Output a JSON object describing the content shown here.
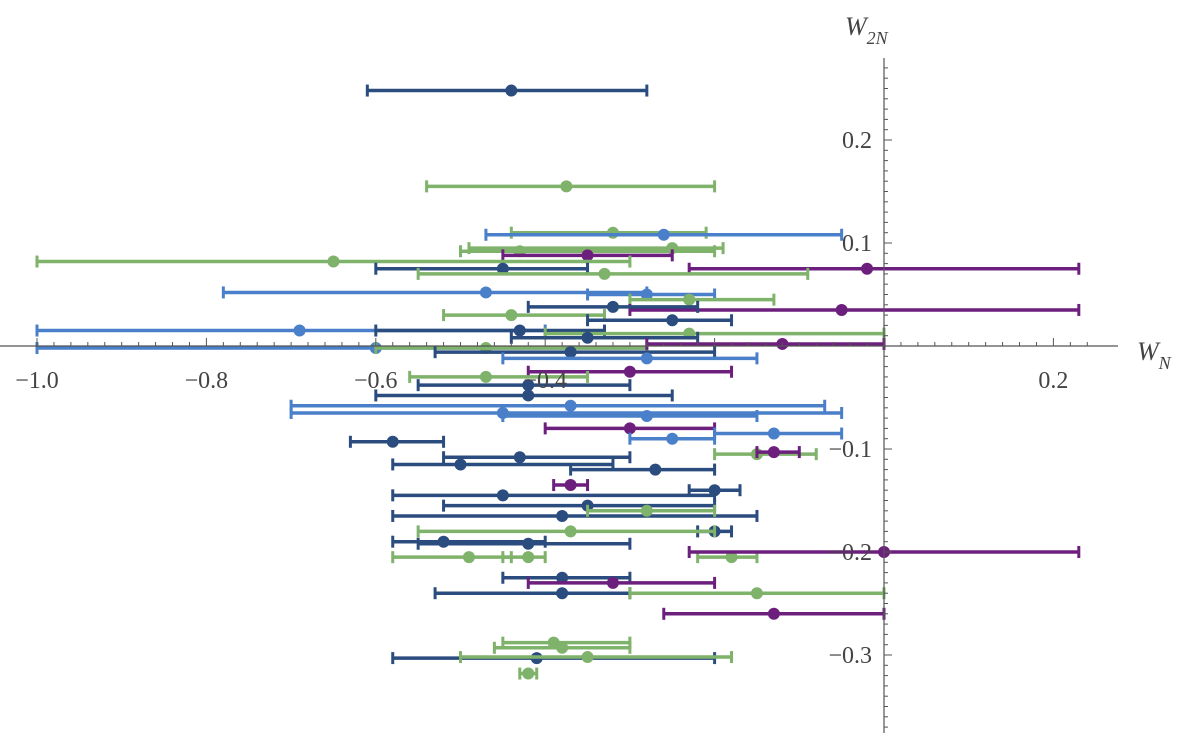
{
  "chart_data": {
    "type": "scatter",
    "error_bars": "horizontal",
    "xlabel_main": "W",
    "xlabel_sub": "N",
    "ylabel_main": "W",
    "ylabel_sub": "2N",
    "xlim": [
      -1.0,
      0.24
    ],
    "ylim": [
      -0.38,
      0.28
    ],
    "xticks": [
      {
        "v": -1.0,
        "label": "−1.0"
      },
      {
        "v": -0.8,
        "label": "−0.8"
      },
      {
        "v": -0.6,
        "label": "−0.6"
      },
      {
        "v": -0.4,
        "label": "−0.4"
      },
      {
        "v": 0.2,
        "label": "0.2"
      }
    ],
    "yticks": [
      {
        "v": 0.2,
        "label": "0.2"
      },
      {
        "v": 0.1,
        "label": "0.1"
      },
      {
        "v": -0.1,
        "label": "−0.1"
      },
      {
        "v": -0.2,
        "label": "−0.2"
      },
      {
        "v": -0.3,
        "label": "−0.3"
      }
    ],
    "grid": false,
    "colors": {
      "navy": "#2b4c7e",
      "blue": "#4a7fc9",
      "green": "#7fb26a",
      "purple": "#6d1f7e",
      "axis": "#555555"
    },
    "points": [
      {
        "c": "navy",
        "x": -0.44,
        "y": 0.248,
        "lo": -0.61,
        "hi": -0.28
      },
      {
        "c": "green",
        "x": -0.375,
        "y": 0.155,
        "lo": -0.54,
        "hi": -0.2
      },
      {
        "c": "green",
        "x": -0.32,
        "y": 0.11,
        "lo": -0.44,
        "hi": -0.21
      },
      {
        "c": "blue",
        "x": -0.26,
        "y": 0.108,
        "lo": -0.47,
        "hi": -0.05
      },
      {
        "c": "green",
        "x": -0.25,
        "y": 0.095,
        "lo": -0.49,
        "hi": -0.19
      },
      {
        "c": "green",
        "x": -0.43,
        "y": 0.092,
        "lo": -0.5,
        "hi": -0.2
      },
      {
        "c": "purple",
        "x": -0.35,
        "y": 0.088,
        "lo": -0.45,
        "hi": -0.25
      },
      {
        "c": "green",
        "x": -0.65,
        "y": 0.082,
        "lo": -1.0,
        "hi": -0.3
      },
      {
        "c": "navy",
        "x": -0.45,
        "y": 0.075,
        "lo": -0.6,
        "hi": -0.35
      },
      {
        "c": "purple",
        "x": -0.02,
        "y": 0.075,
        "lo": -0.23,
        "hi": 0.23
      },
      {
        "c": "green",
        "x": -0.33,
        "y": 0.07,
        "lo": -0.55,
        "hi": -0.09
      },
      {
        "c": "blue",
        "x": -0.47,
        "y": 0.052,
        "lo": -0.78,
        "hi": -0.28
      },
      {
        "c": "blue",
        "x": -0.28,
        "y": 0.05,
        "lo": -0.35,
        "hi": -0.2
      },
      {
        "c": "green",
        "x": -0.23,
        "y": 0.045,
        "lo": -0.3,
        "hi": -0.13
      },
      {
        "c": "purple",
        "x": -0.05,
        "y": 0.035,
        "lo": -0.3,
        "hi": 0.23
      },
      {
        "c": "navy",
        "x": -0.32,
        "y": 0.038,
        "lo": -0.42,
        "hi": -0.22
      },
      {
        "c": "green",
        "x": -0.44,
        "y": 0.03,
        "lo": -0.52,
        "hi": -0.33
      },
      {
        "c": "navy",
        "x": -0.25,
        "y": 0.025,
        "lo": -0.35,
        "hi": -0.18
      },
      {
        "c": "blue",
        "x": -0.69,
        "y": 0.015,
        "lo": -1.0,
        "hi": -0.4
      },
      {
        "c": "navy",
        "x": -0.43,
        "y": 0.015,
        "lo": -0.6,
        "hi": -0.33
      },
      {
        "c": "green",
        "x": -0.23,
        "y": 0.012,
        "lo": -0.4,
        "hi": 0.0
      },
      {
        "c": "navy",
        "x": -0.35,
        "y": 0.008,
        "lo": -0.44,
        "hi": -0.22
      },
      {
        "c": "blue",
        "x": -0.6,
        "y": -0.002,
        "lo": -1.0,
        "hi": -0.28
      },
      {
        "c": "green",
        "x": -0.47,
        "y": -0.002,
        "lo": -0.6,
        "hi": -0.28
      },
      {
        "c": "purple",
        "x": -0.12,
        "y": 0.002,
        "lo": -0.28,
        "hi": 0.0
      },
      {
        "c": "navy",
        "x": -0.37,
        "y": -0.006,
        "lo": -0.53,
        "hi": -0.2
      },
      {
        "c": "blue",
        "x": -0.28,
        "y": -0.012,
        "lo": -0.45,
        "hi": -0.15
      },
      {
        "c": "purple",
        "x": -0.3,
        "y": -0.025,
        "lo": -0.42,
        "hi": -0.18
      },
      {
        "c": "green",
        "x": -0.47,
        "y": -0.03,
        "lo": -0.56,
        "hi": -0.35
      },
      {
        "c": "navy",
        "x": -0.42,
        "y": -0.038,
        "lo": -0.55,
        "hi": -0.3
      },
      {
        "c": "navy",
        "x": -0.42,
        "y": -0.048,
        "lo": -0.6,
        "hi": -0.25
      },
      {
        "c": "blue",
        "x": -0.37,
        "y": -0.058,
        "lo": -0.7,
        "hi": -0.07
      },
      {
        "c": "blue",
        "x": -0.45,
        "y": -0.065,
        "lo": -0.7,
        "hi": -0.05
      },
      {
        "c": "blue",
        "x": -0.28,
        "y": -0.068,
        "lo": -0.45,
        "hi": -0.15
      },
      {
        "c": "purple",
        "x": -0.3,
        "y": -0.08,
        "lo": -0.4,
        "hi": -0.2
      },
      {
        "c": "blue",
        "x": -0.25,
        "y": -0.09,
        "lo": -0.3,
        "hi": -0.2
      },
      {
        "c": "blue",
        "x": -0.13,
        "y": -0.085,
        "lo": -0.2,
        "hi": -0.05
      },
      {
        "c": "navy",
        "x": -0.58,
        "y": -0.093,
        "lo": -0.63,
        "hi": -0.52
      },
      {
        "c": "green",
        "x": -0.15,
        "y": -0.105,
        "lo": -0.2,
        "hi": -0.08
      },
      {
        "c": "purple",
        "x": -0.13,
        "y": -0.103,
        "lo": -0.15,
        "hi": -0.1
      },
      {
        "c": "navy",
        "x": -0.5,
        "y": -0.115,
        "lo": -0.58,
        "hi": -0.32
      },
      {
        "c": "navy",
        "x": -0.43,
        "y": -0.108,
        "lo": -0.52,
        "hi": -0.3
      },
      {
        "c": "navy",
        "x": -0.27,
        "y": -0.12,
        "lo": -0.37,
        "hi": -0.2
      },
      {
        "c": "purple",
        "x": -0.37,
        "y": -0.135,
        "lo": -0.39,
        "hi": -0.35
      },
      {
        "c": "navy",
        "x": -0.2,
        "y": -0.14,
        "lo": -0.23,
        "hi": -0.17
      },
      {
        "c": "navy",
        "x": -0.45,
        "y": -0.145,
        "lo": -0.58,
        "hi": -0.2
      },
      {
        "c": "navy",
        "x": -0.35,
        "y": -0.155,
        "lo": -0.52,
        "hi": -0.2
      },
      {
        "c": "navy",
        "x": -0.38,
        "y": -0.165,
        "lo": -0.58,
        "hi": -0.15
      },
      {
        "c": "green",
        "x": -0.28,
        "y": -0.16,
        "lo": -0.35,
        "hi": -0.2
      },
      {
        "c": "navy",
        "x": -0.52,
        "y": -0.19,
        "lo": -0.58,
        "hi": -0.4
      },
      {
        "c": "navy",
        "x": -0.42,
        "y": -0.192,
        "lo": -0.55,
        "hi": -0.3
      },
      {
        "c": "navy",
        "x": -0.2,
        "y": -0.18,
        "lo": -0.22,
        "hi": -0.18
      },
      {
        "c": "green",
        "x": -0.37,
        "y": -0.18,
        "lo": -0.55,
        "hi": -0.2
      },
      {
        "c": "green",
        "x": -0.49,
        "y": -0.205,
        "lo": -0.58,
        "hi": -0.44
      },
      {
        "c": "green",
        "x": -0.42,
        "y": -0.205,
        "lo": -0.45,
        "hi": -0.4
      },
      {
        "c": "green",
        "x": -0.18,
        "y": -0.205,
        "lo": -0.22,
        "hi": -0.15
      },
      {
        "c": "purple",
        "x": 0.0,
        "y": -0.2,
        "lo": -0.23,
        "hi": 0.23
      },
      {
        "c": "navy",
        "x": -0.38,
        "y": -0.225,
        "lo": -0.45,
        "hi": -0.3
      },
      {
        "c": "purple",
        "x": -0.32,
        "y": -0.23,
        "lo": -0.42,
        "hi": -0.2
      },
      {
        "c": "navy",
        "x": -0.38,
        "y": -0.24,
        "lo": -0.53,
        "hi": -0.3
      },
      {
        "c": "green",
        "x": -0.15,
        "y": -0.24,
        "lo": -0.3,
        "hi": 0.0
      },
      {
        "c": "purple",
        "x": -0.13,
        "y": -0.26,
        "lo": -0.26,
        "hi": 0.0
      },
      {
        "c": "green",
        "x": -0.39,
        "y": -0.288,
        "lo": -0.45,
        "hi": -0.3
      },
      {
        "c": "green",
        "x": -0.38,
        "y": -0.293,
        "lo": -0.46,
        "hi": -0.3
      },
      {
        "c": "navy",
        "x": -0.41,
        "y": -0.303,
        "lo": -0.58,
        "hi": -0.2
      },
      {
        "c": "green",
        "x": -0.35,
        "y": -0.302,
        "lo": -0.5,
        "hi": -0.18
      },
      {
        "c": "green",
        "x": -0.42,
        "y": -0.318,
        "lo": -0.43,
        "hi": -0.41
      }
    ]
  }
}
